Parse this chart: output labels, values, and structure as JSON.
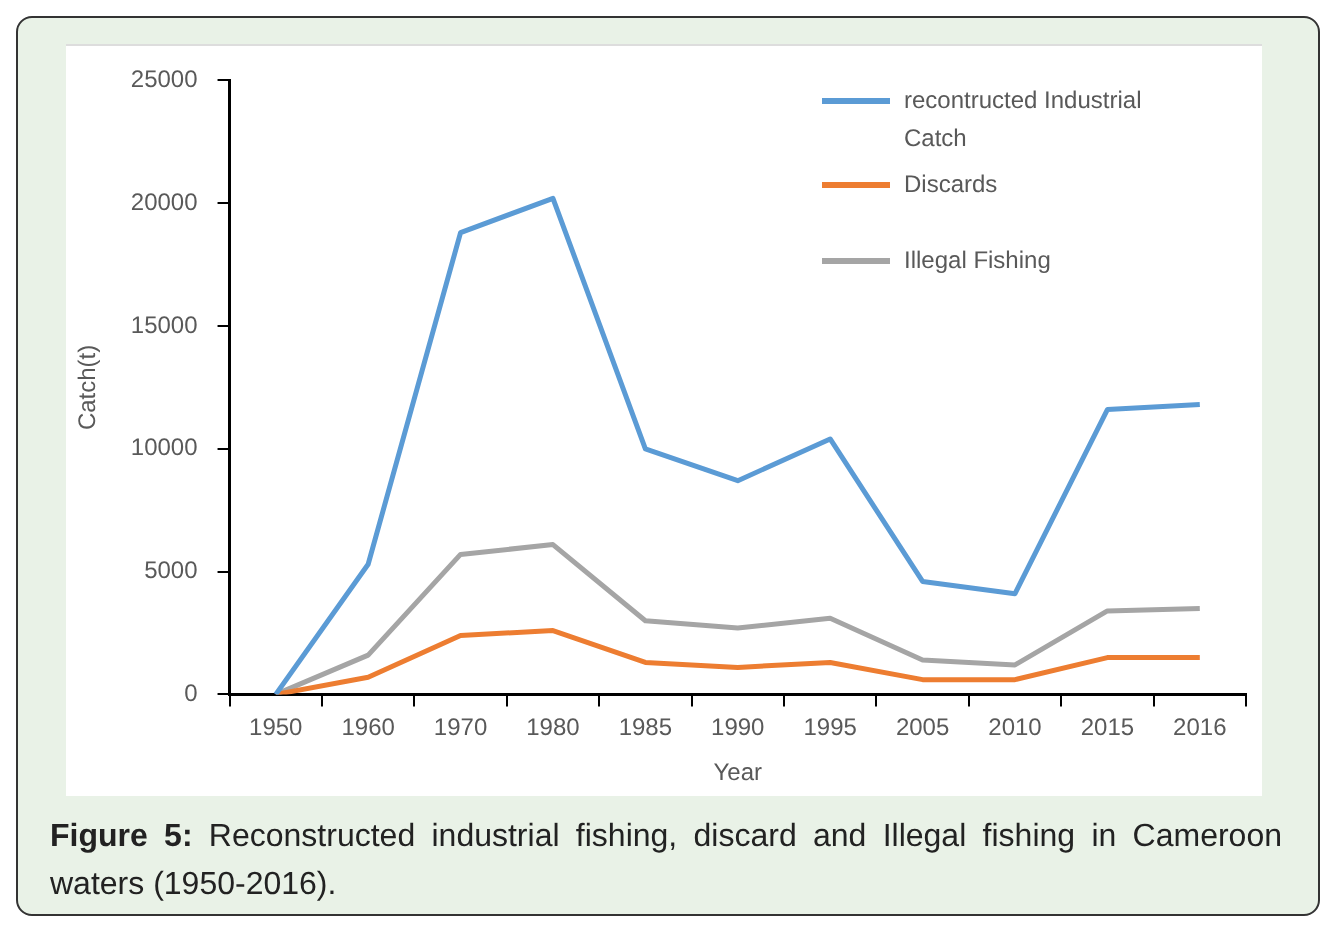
{
  "chart_data": {
    "type": "line",
    "xlabel": "Year",
    "ylabel": "Catch(t)",
    "categories": [
      "1950",
      "1960",
      "1970",
      "1980",
      "1985",
      "1990",
      "1995",
      "2005",
      "2010",
      "2015",
      "2016"
    ],
    "series": [
      {
        "name": "recontructed Industrial Catch",
        "color": "#5b9bd5",
        "values": [
          0,
          5300,
          18800,
          20200,
          10000,
          8700,
          10400,
          4600,
          4100,
          11600,
          11800
        ]
      },
      {
        "name": "Discards",
        "color": "#ed7d31",
        "values": [
          0,
          700,
          2400,
          2600,
          1300,
          1100,
          1300,
          600,
          600,
          1500,
          1500
        ]
      },
      {
        "name": "Illegal Fishing",
        "color": "#a5a5a5",
        "values": [
          0,
          1600,
          5700,
          6100,
          3000,
          2700,
          3100,
          1400,
          1200,
          3400,
          3500
        ]
      }
    ],
    "ylim": [
      0,
      25000
    ],
    "yticks": [
      0,
      5000,
      10000,
      15000,
      20000,
      25000
    ],
    "grid": false,
    "legend": "top right",
    "marker": "none",
    "line_style": "solid",
    "annotations": [
      "Figure 5:",
      "Reconstructed industrial fishing, discard and Illegal fishing in Cameroon waters (1950-2016)."
    ]
  }
}
